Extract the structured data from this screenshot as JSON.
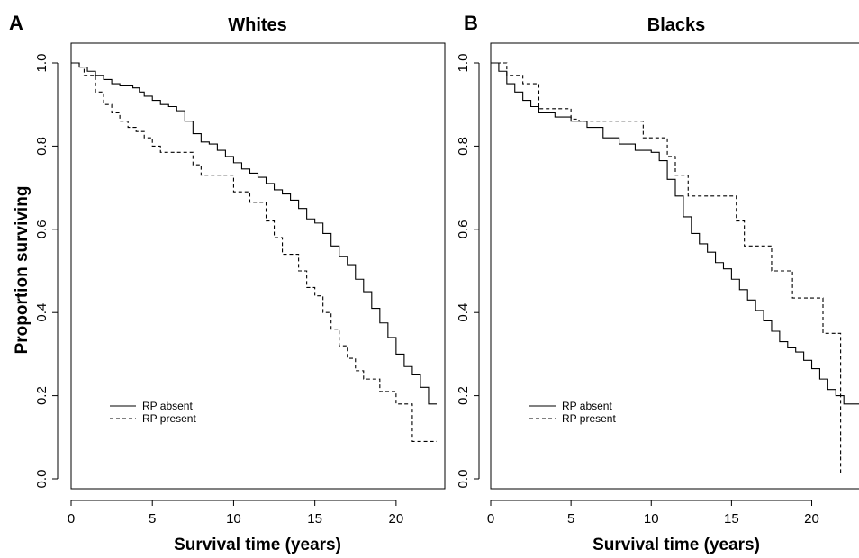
{
  "figure": {
    "ylabel": "Proportion surviving",
    "legend_placement": "bottom-left"
  },
  "chart_data": [
    {
      "type": "line",
      "subtype": "kaplan-meier-step",
      "panel_letter": "A",
      "title": "Whites",
      "xlabel": "Survival time (years)",
      "ylabel": "Proportion surviving",
      "xlim": [
        0,
        23
      ],
      "ylim": [
        0,
        1.0
      ],
      "xticks": [
        0,
        5,
        10,
        15,
        20
      ],
      "yticks": [
        "0.0",
        "0.2",
        "0.4",
        "0.6",
        "0.8",
        "1.0"
      ],
      "grid": false,
      "legend": [
        "RP absent",
        "RP present"
      ],
      "series": [
        {
          "name": "RP absent",
          "style": "solid",
          "x": [
            0,
            0.5,
            1,
            1.5,
            2,
            2.5,
            3,
            3.8,
            4.2,
            4.5,
            5,
            5.5,
            6,
            6.5,
            7,
            7.5,
            8,
            8.5,
            9,
            9.5,
            10,
            10.5,
            11,
            11.5,
            12,
            12.5,
            13,
            13.5,
            14,
            14.5,
            15,
            15.5,
            16,
            16.5,
            17,
            17.5,
            18,
            18.5,
            19,
            19.5,
            20,
            20.5,
            21,
            21.5,
            22,
            22.5
          ],
          "y": [
            1.0,
            0.99,
            0.98,
            0.97,
            0.96,
            0.95,
            0.945,
            0.94,
            0.93,
            0.92,
            0.91,
            0.9,
            0.895,
            0.885,
            0.86,
            0.83,
            0.81,
            0.805,
            0.79,
            0.775,
            0.76,
            0.745,
            0.735,
            0.725,
            0.71,
            0.695,
            0.685,
            0.67,
            0.65,
            0.625,
            0.615,
            0.59,
            0.56,
            0.535,
            0.515,
            0.48,
            0.45,
            0.41,
            0.375,
            0.34,
            0.3,
            0.27,
            0.25,
            0.22,
            0.18,
            0.18
          ]
        },
        {
          "name": "RP present",
          "style": "dashed",
          "x": [
            0,
            0.5,
            0.8,
            1.5,
            2,
            2.5,
            3,
            3.5,
            4,
            4.5,
            5,
            5.5,
            7.5,
            8,
            10,
            11,
            12,
            12.5,
            13,
            14,
            14.5,
            15,
            15.5,
            16,
            16.5,
            17,
            17.5,
            18,
            19,
            20,
            21,
            22.5
          ],
          "y": [
            1.0,
            0.99,
            0.97,
            0.93,
            0.9,
            0.88,
            0.86,
            0.845,
            0.835,
            0.82,
            0.8,
            0.785,
            0.755,
            0.73,
            0.69,
            0.665,
            0.62,
            0.58,
            0.54,
            0.5,
            0.46,
            0.44,
            0.4,
            0.36,
            0.32,
            0.29,
            0.26,
            0.24,
            0.21,
            0.18,
            0.09,
            0.09
          ]
        }
      ]
    },
    {
      "type": "line",
      "subtype": "kaplan-meier-step",
      "panel_letter": "B",
      "title": "Blacks",
      "xlabel": "Survival time (years)",
      "ylabel": "",
      "xlim": [
        0,
        23
      ],
      "ylim": [
        0,
        1.0
      ],
      "xticks": [
        0,
        5,
        10,
        15,
        20
      ],
      "yticks": [
        "0.0",
        "0.2",
        "0.4",
        "0.6",
        "0.8",
        "1.0"
      ],
      "grid": false,
      "legend": [
        "RP absent",
        "RP present"
      ],
      "series": [
        {
          "name": "RP absent",
          "style": "solid",
          "x": [
            0,
            0.5,
            1,
            1.5,
            2,
            2.5,
            3,
            4,
            5,
            6,
            7,
            8,
            9,
            10,
            10.5,
            11,
            11.5,
            12,
            12.5,
            13,
            13.5,
            14,
            14.5,
            15,
            15.5,
            16,
            16.5,
            17,
            17.5,
            18,
            18.5,
            19,
            19.5,
            20,
            20.5,
            21,
            21.5,
            22,
            23
          ],
          "y": [
            1.0,
            0.98,
            0.95,
            0.93,
            0.91,
            0.895,
            0.88,
            0.87,
            0.86,
            0.845,
            0.82,
            0.805,
            0.79,
            0.785,
            0.765,
            0.72,
            0.68,
            0.63,
            0.59,
            0.565,
            0.545,
            0.52,
            0.505,
            0.48,
            0.455,
            0.43,
            0.405,
            0.38,
            0.355,
            0.33,
            0.315,
            0.305,
            0.285,
            0.265,
            0.24,
            0.215,
            0.2,
            0.18,
            0.18
          ]
        },
        {
          "name": "RP present",
          "style": "dashed",
          "x": [
            0,
            1,
            2,
            3,
            5,
            5.5,
            9.5,
            11,
            11.5,
            12.3,
            13.2,
            15.3,
            15.8,
            17.5,
            18.8,
            20.7,
            21.8
          ],
          "y": [
            1.0,
            0.97,
            0.95,
            0.89,
            0.865,
            0.86,
            0.82,
            0.775,
            0.73,
            0.68,
            0.68,
            0.62,
            0.56,
            0.5,
            0.435,
            0.35,
            0.01
          ]
        }
      ]
    }
  ]
}
